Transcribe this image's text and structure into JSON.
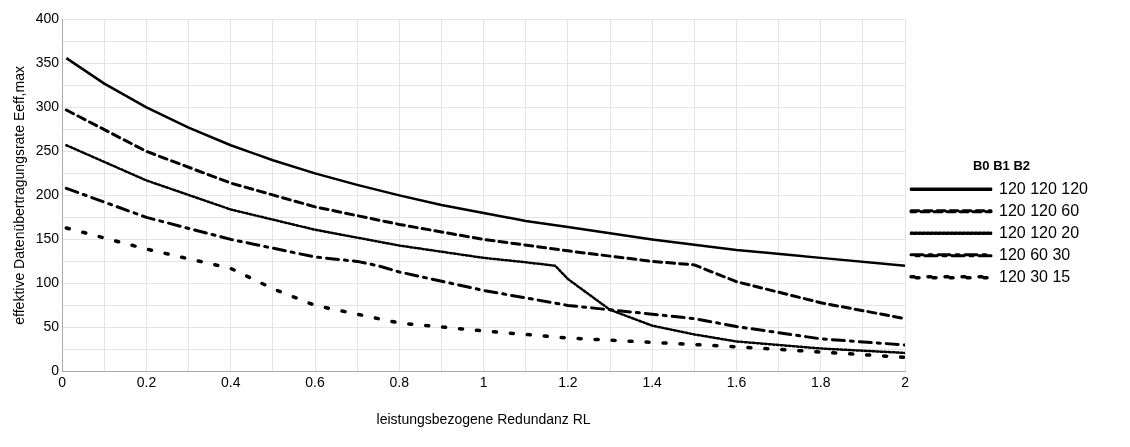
{
  "chart_data": {
    "type": "line",
    "xlabel": "leistungsbezogene Redundanz RL",
    "ylabel": "effektive Datenübertragungsrate Eeff,max",
    "legend_title": "B0 B1 B2",
    "legend": "right",
    "grid": true,
    "marker": "none",
    "xlim": [
      0,
      2
    ],
    "ylim": [
      0,
      400
    ],
    "xticks": [
      0,
      {
        "value": 0.1,
        "label": null
      },
      0.2,
      {
        "value": 0.3,
        "label": null
      },
      0.4,
      {
        "value": 0.5,
        "label": null
      },
      0.6,
      {
        "value": 0.7,
        "label": null
      },
      0.8,
      {
        "value": 0.9,
        "label": null
      },
      1,
      {
        "value": 1.1,
        "label": null
      },
      1.2,
      {
        "value": 1.3,
        "label": null
      },
      1.4,
      {
        "value": 1.5,
        "label": null
      },
      1.6,
      {
        "value": 1.7,
        "label": null
      },
      1.8,
      {
        "value": 1.9,
        "label": null
      },
      2
    ],
    "yticks": [
      0,
      {
        "value": 25,
        "label": null
      },
      50,
      {
        "value": 75,
        "label": null
      },
      100,
      {
        "value": 125,
        "label": null
      },
      150,
      {
        "value": 175,
        "label": null
      },
      200,
      {
        "value": 225,
        "label": null
      },
      250,
      {
        "value": 275,
        "label": null
      },
      300,
      {
        "value": 325,
        "label": null
      },
      350,
      {
        "value": 375,
        "label": null
      },
      400
    ],
    "series": [
      {
        "name": "120 120 120",
        "color": "#000000",
        "line_style": "solid",
        "x": [
          0.01,
          0.1,
          0.2,
          0.3,
          0.4,
          0.5,
          0.6,
          0.7,
          0.8,
          0.9,
          1,
          1.1,
          1.2,
          1.4,
          1.6,
          1.8,
          2
        ],
        "values": [
          356,
          327,
          300,
          277,
          257,
          240,
          225,
          212,
          200,
          189,
          180,
          171,
          164,
          150,
          138,
          129,
          120
        ]
      },
      {
        "name": "120 120 60",
        "color": "#000000",
        "line_style": "dashed",
        "x": [
          0.01,
          0.2,
          0.4,
          0.6,
          0.8,
          1,
          1.2,
          1.4,
          1.5,
          1.6,
          1.8,
          2
        ],
        "values": [
          297,
          250,
          214,
          187,
          167,
          150,
          137,
          125,
          121,
          102,
          78,
          60
        ]
      },
      {
        "name": "120 120 20",
        "color": "#000000",
        "line_style": "dotted",
        "x": [
          0.01,
          0.2,
          0.4,
          0.6,
          0.8,
          1,
          1.1,
          1.17,
          1.2,
          1.3,
          1.4,
          1.5,
          1.6,
          1.8,
          2
        ],
        "values": [
          257,
          217,
          184,
          161,
          143,
          129,
          124,
          120,
          105,
          70,
          52,
          42,
          34,
          26,
          21
        ]
      },
      {
        "name": "120 60 30",
        "color": "#000000",
        "line_style": "dashdot",
        "x": [
          0.01,
          0.2,
          0.4,
          0.6,
          0.7,
          0.75,
          0.8,
          1,
          1.2,
          1.4,
          1.5,
          1.6,
          1.8,
          2
        ],
        "values": [
          208,
          175,
          150,
          130,
          125,
          120,
          113,
          92,
          75,
          65,
          60,
          51,
          37,
          30
        ]
      },
      {
        "name": "120 30 15",
        "color": "#000000",
        "line_style": "loose-dotted",
        "x": [
          0.01,
          0.2,
          0.4,
          0.5,
          0.6,
          0.8,
          1,
          1.2,
          1.4,
          1.6,
          1.8,
          2
        ],
        "values": [
          163,
          139,
          117,
          94,
          75,
          55,
          46,
          38,
          33,
          28,
          22,
          16
        ]
      }
    ]
  }
}
